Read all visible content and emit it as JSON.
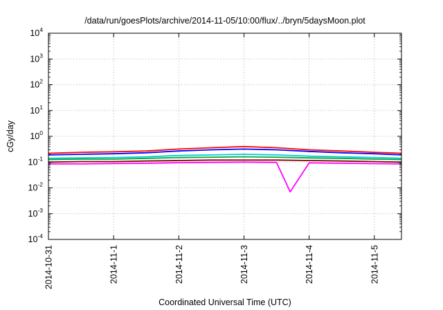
{
  "chart_data": {
    "type": "line",
    "title": "/data/run/goesPlots/archive/2014-11-05/10:00/flux/../bryn/5daysMoon.plot",
    "xlabel": "Coordinated Universal Time (UTC)",
    "ylabel": "cGy/day",
    "y_scale": "log",
    "ylim": [
      0.0001,
      10000
    ],
    "xlim": [
      "2014-10-31 00:00",
      "2014-11-05 10:00"
    ],
    "grid": true,
    "x_ticks": [
      "2014-10-31",
      "2014-11-1",
      "2014-11-2",
      "2014-11-3",
      "2014-11-4",
      "2014-11-5"
    ],
    "y_ticks": [
      {
        "base": "10",
        "exp": "-4"
      },
      {
        "base": "10",
        "exp": "-3"
      },
      {
        "base": "10",
        "exp": "-2"
      },
      {
        "base": "10",
        "exp": "-1"
      },
      {
        "base": "10",
        "exp": "0"
      },
      {
        "base": "10",
        "exp": "1"
      },
      {
        "base": "10",
        "exp": "2"
      },
      {
        "base": "10",
        "exp": "3"
      },
      {
        "base": "10",
        "exp": "4"
      }
    ],
    "series": [
      {
        "color": "#ff0000",
        "points": [
          [
            "2014-10-31 00:00",
            0.22
          ],
          [
            "2014-10-31 12:00",
            0.24
          ],
          [
            "2014-11-1 00:00",
            0.25
          ],
          [
            "2014-11-1 12:00",
            0.27
          ],
          [
            "2014-11-2 00:00",
            0.32
          ],
          [
            "2014-11-2 12:00",
            0.36
          ],
          [
            "2014-11-3 00:00",
            0.4
          ],
          [
            "2014-11-3 12:00",
            0.36
          ],
          [
            "2014-11-4 00:00",
            0.3
          ],
          [
            "2014-11-4 12:00",
            0.27
          ],
          [
            "2014-11-5 00:00",
            0.24
          ],
          [
            "2014-11-5 10:00",
            0.22
          ]
        ]
      },
      {
        "color": "#0000ff",
        "points": [
          [
            "2014-10-31 00:00",
            0.19
          ],
          [
            "2014-10-31 12:00",
            0.2
          ],
          [
            "2014-11-1 00:00",
            0.21
          ],
          [
            "2014-11-1 12:00",
            0.23
          ],
          [
            "2014-11-2 00:00",
            0.27
          ],
          [
            "2014-11-2 12:00",
            0.3
          ],
          [
            "2014-11-3 00:00",
            0.32
          ],
          [
            "2014-11-3 12:00",
            0.3
          ],
          [
            "2014-11-4 00:00",
            0.26
          ],
          [
            "2014-11-4 12:00",
            0.23
          ],
          [
            "2014-11-5 00:00",
            0.21
          ],
          [
            "2014-11-5 10:00",
            0.19
          ]
        ]
      },
      {
        "color": "#00cccc",
        "points": [
          [
            "2014-10-31 00:00",
            0.14
          ],
          [
            "2014-10-31 12:00",
            0.145
          ],
          [
            "2014-11-1 00:00",
            0.15
          ],
          [
            "2014-11-1 12:00",
            0.16
          ],
          [
            "2014-11-2 00:00",
            0.18
          ],
          [
            "2014-11-2 12:00",
            0.19
          ],
          [
            "2014-11-3 00:00",
            0.2
          ],
          [
            "2014-11-3 12:00",
            0.19
          ],
          [
            "2014-11-4 00:00",
            0.17
          ],
          [
            "2014-11-4 12:00",
            0.16
          ],
          [
            "2014-11-5 00:00",
            0.15
          ],
          [
            "2014-11-5 10:00",
            0.14
          ]
        ]
      },
      {
        "color": "#00aa44",
        "points": [
          [
            "2014-10-31 00:00",
            0.125
          ],
          [
            "2014-10-31 12:00",
            0.13
          ],
          [
            "2014-11-1 00:00",
            0.13
          ],
          [
            "2014-11-1 12:00",
            0.14
          ],
          [
            "2014-11-2 00:00",
            0.15
          ],
          [
            "2014-11-2 12:00",
            0.155
          ],
          [
            "2014-11-3 00:00",
            0.16
          ],
          [
            "2014-11-3 12:00",
            0.155
          ],
          [
            "2014-11-4 00:00",
            0.145
          ],
          [
            "2014-11-4 12:00",
            0.14
          ],
          [
            "2014-11-5 00:00",
            0.13
          ],
          [
            "2014-11-5 10:00",
            0.125
          ]
        ]
      },
      {
        "color": "#880000",
        "points": [
          [
            "2014-10-31 00:00",
            0.1
          ],
          [
            "2014-10-31 12:00",
            0.105
          ],
          [
            "2014-11-1 00:00",
            0.105
          ],
          [
            "2014-11-1 12:00",
            0.11
          ],
          [
            "2014-11-2 00:00",
            0.115
          ],
          [
            "2014-11-2 12:00",
            0.12
          ],
          [
            "2014-11-3 00:00",
            0.12
          ],
          [
            "2014-11-3 12:00",
            0.12
          ],
          [
            "2014-11-4 00:00",
            0.115
          ],
          [
            "2014-11-4 12:00",
            0.11
          ],
          [
            "2014-11-5 00:00",
            0.105
          ],
          [
            "2014-11-5 10:00",
            0.1
          ]
        ]
      },
      {
        "color": "#ff00ff",
        "points": [
          [
            "2014-10-31 00:00",
            0.085
          ],
          [
            "2014-10-31 12:00",
            0.085
          ],
          [
            "2014-11-1 00:00",
            0.088
          ],
          [
            "2014-11-1 12:00",
            0.09
          ],
          [
            "2014-11-2 00:00",
            0.095
          ],
          [
            "2014-11-2 12:00",
            0.097
          ],
          [
            "2014-11-3 00:00",
            0.1
          ],
          [
            "2014-11-3 12:00",
            0.097
          ],
          [
            "2014-11-3 17:00",
            0.007
          ],
          [
            "2014-11-4 00:00",
            0.093
          ],
          [
            "2014-11-4 12:00",
            0.09
          ],
          [
            "2014-11-5 00:00",
            0.087
          ],
          [
            "2014-11-5 10:00",
            0.085
          ]
        ]
      }
    ]
  }
}
